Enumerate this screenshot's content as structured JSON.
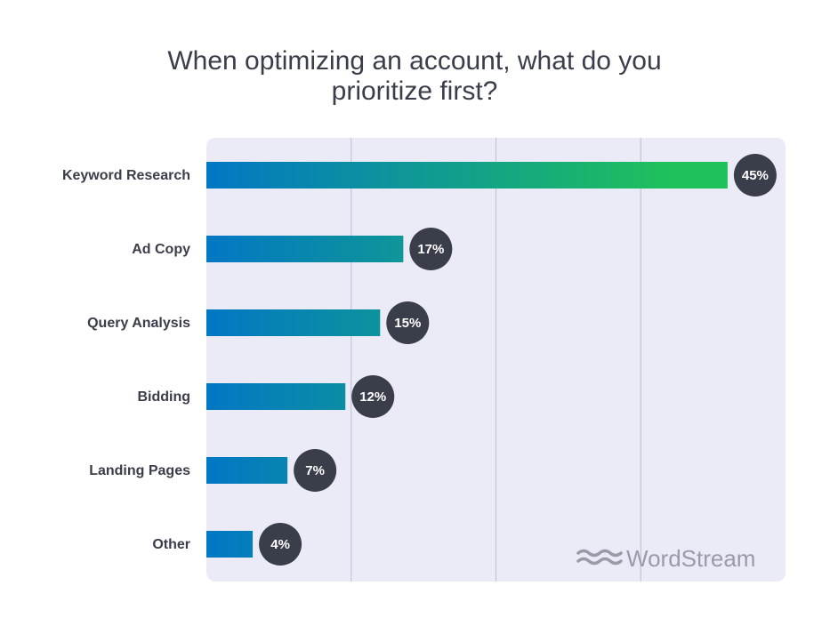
{
  "chart_data": {
    "type": "bar",
    "orientation": "horizontal",
    "title_lines": [
      "When optimizing an account, what do you",
      "prioritize first?"
    ],
    "categories": [
      "Keyword Research",
      "Ad Copy",
      "Query Analysis",
      "Bidding",
      "Landing Pages",
      "Other"
    ],
    "values": [
      45,
      17,
      15,
      12,
      7,
      4
    ],
    "value_labels": [
      "45%",
      "17%",
      "15%",
      "12%",
      "7%",
      "4%"
    ],
    "xlim": [
      0,
      50
    ],
    "grid": true,
    "xlabel": "",
    "ylabel": ""
  },
  "logo": {
    "text": "WordStream",
    "icon": "wave-logo-icon"
  },
  "colors": {
    "background_panel": "#ebebf8",
    "gridline": "#c4c5d6",
    "bar_start": "#0277c4",
    "bar_end": "#1fc25a",
    "badge": "#3a3d4a",
    "text": "#3a3d4a",
    "logo": "#9a9ba8"
  }
}
